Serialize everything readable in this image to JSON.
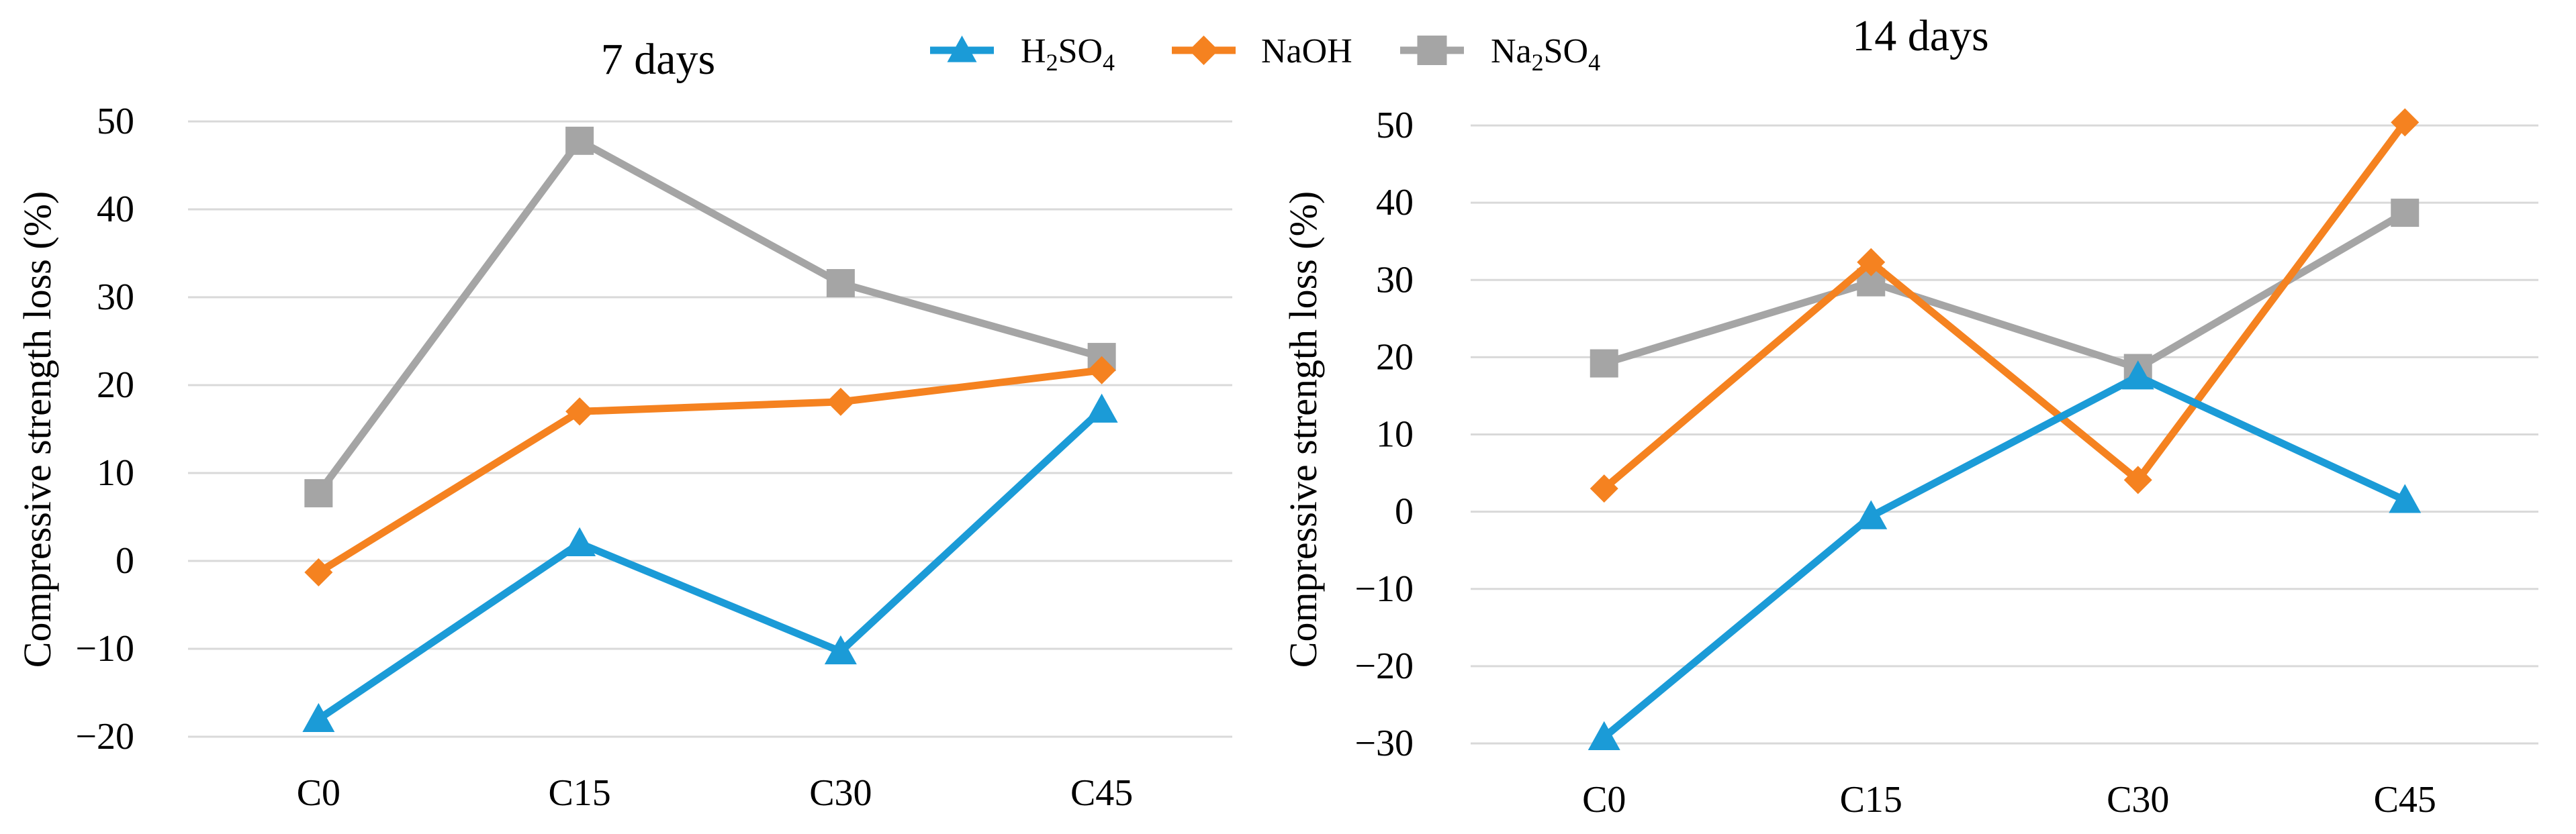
{
  "colors": {
    "h2so4": "#1b9bd7",
    "naoh": "#f58220",
    "na2so4": "#a5a5a5"
  },
  "legend": [
    {
      "id": "h2so4",
      "base": "H",
      "sub1": "2",
      "mid": "SO",
      "sub2": "4",
      "marker": "triangle"
    },
    {
      "id": "naoh",
      "base": "NaOH",
      "sub1": "",
      "mid": "",
      "sub2": "",
      "marker": "diamond"
    },
    {
      "id": "na2so4",
      "base": "Na",
      "sub1": "2",
      "mid": "SO",
      "sub2": "4",
      "marker": "square"
    }
  ],
  "chart_data": [
    {
      "type": "line",
      "title": "7 days",
      "ylabel": "Compressive strength loss (%)",
      "xlabel": "",
      "categories": [
        "C0",
        "C15",
        "C30",
        "C45"
      ],
      "ylim": [
        -20,
        50
      ],
      "yticks": [
        -20,
        -10,
        0,
        10,
        20,
        30,
        40,
        50
      ],
      "series": [
        {
          "name": "H2SO4",
          "key": "h2so4",
          "values": [
            -18,
            2,
            -10.3,
            17.2
          ]
        },
        {
          "name": "NaOH",
          "key": "naoh",
          "values": [
            -1.3,
            17,
            18.1,
            21.7
          ]
        },
        {
          "name": "Na2SO4",
          "key": "na2so4",
          "values": [
            7.7,
            47.8,
            31.6,
            23.2
          ]
        }
      ]
    },
    {
      "type": "line",
      "title": "14 days",
      "ylabel": "Compressive strength loss (%)",
      "xlabel": "",
      "categories": [
        "C0",
        "C15",
        "C30",
        "C45"
      ],
      "ylim": [
        -30,
        50
      ],
      "yticks": [
        -30,
        -20,
        -10,
        0,
        10,
        20,
        30,
        40,
        50
      ],
      "series": [
        {
          "name": "H2SO4",
          "key": "h2so4",
          "values": [
            -29.2,
            -0.6,
            17.5,
            1.5
          ]
        },
        {
          "name": "NaOH",
          "key": "naoh",
          "values": [
            3,
            32.3,
            4.1,
            50.4
          ]
        },
        {
          "name": "Na2SO4",
          "key": "na2so4",
          "values": [
            19.2,
            29.7,
            18.6,
            38.7
          ]
        }
      ]
    }
  ]
}
